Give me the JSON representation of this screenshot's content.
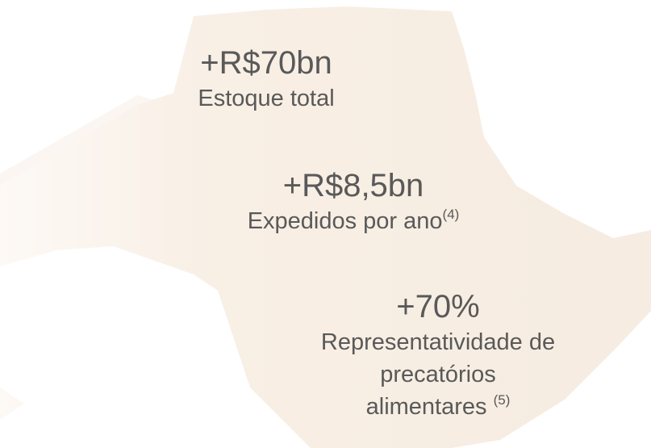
{
  "stats": [
    {
      "value": "+R$70bn",
      "lines": [
        "Estoque total"
      ]
    },
    {
      "value": "+R$8,5bn",
      "lines": [
        "Expedidos por ano"
      ],
      "note": "(4)"
    },
    {
      "value": "+70%",
      "lines": [
        "Representatividade de",
        "precatórios",
        "alimentares"
      ],
      "note": "(5)"
    }
  ]
}
